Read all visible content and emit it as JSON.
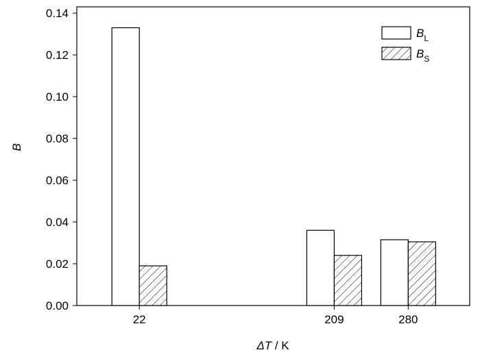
{
  "chart_data": {
    "type": "bar",
    "x": [
      22,
      209,
      280
    ],
    "xlim": [
      -38,
      339
    ],
    "xticks": [
      22,
      209,
      280
    ],
    "ylim": [
      0,
      0.143
    ],
    "yticks": [
      {
        "value": 0,
        "label": "0.00"
      },
      {
        "value": 0.02,
        "label": "0.02"
      },
      {
        "value": 0.04,
        "label": "0.04"
      },
      {
        "value": 0.06,
        "label": "0.06"
      },
      {
        "value": 0.08,
        "label": "0.08"
      },
      {
        "value": 0.1,
        "label": "0.10"
      },
      {
        "value": 0.12,
        "label": "0.12"
      },
      {
        "value": 0.14,
        "label": "0.14"
      }
    ],
    "ylabel": "B",
    "xlabel": [
      "ΔT",
      " / K"
    ],
    "legend": "upper right",
    "series": [
      {
        "name": [
          "B",
          "L"
        ],
        "color": "#ffffff",
        "hatch": false,
        "values": [
          0.133,
          0.036,
          0.0315
        ]
      },
      {
        "name": [
          "B",
          "S"
        ],
        "color": "#ffffff",
        "hatch": true,
        "values": [
          0.019,
          0.024,
          0.0305
        ]
      }
    ]
  }
}
